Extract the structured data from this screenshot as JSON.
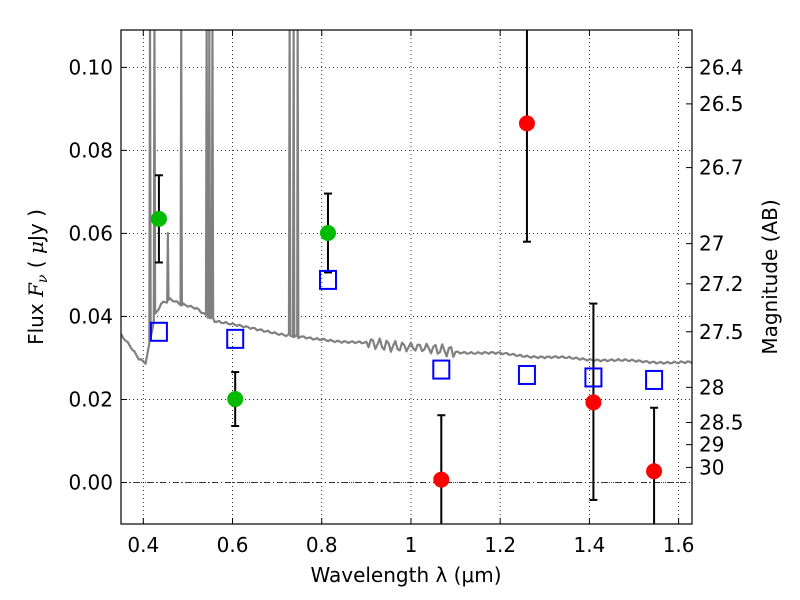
{
  "chart_data": {
    "type": "scatter",
    "xlabel": "Wavelength  λ (μm)",
    "ylabel_parts": [
      "Flux ",
      "F",
      "ν",
      "  ( ",
      "μ",
      "Jy )"
    ],
    "y2label": "Magnitude (AB)",
    "xlim": [
      0.35,
      1.63
    ],
    "ylim": [
      -0.01,
      0.109
    ],
    "grid": true,
    "x_ticks": [
      0.4,
      0.6,
      0.8,
      1.0,
      1.2,
      1.4,
      1.6
    ],
    "x_tick_labels": [
      "0.4",
      "0.6",
      "0.8",
      "1",
      "1.2",
      "1.4",
      "1.6"
    ],
    "y_ticks": [
      0.0,
      0.02,
      0.04,
      0.06,
      0.08,
      0.1
    ],
    "y_tick_labels": [
      "0.00",
      "0.02",
      "0.04",
      "0.06",
      "0.08",
      "0.10"
    ],
    "mag_ticks": [
      26.4,
      26.5,
      26.7,
      27,
      27.2,
      27.5,
      28,
      28.5,
      29,
      30
    ],
    "mag_tick_labels": [
      "26.4",
      "26.5",
      "26.7",
      "27",
      "27.2",
      "27.5",
      "28",
      "28.5",
      "29",
      "30"
    ],
    "zero_point_uJy": 23.9,
    "series": [
      {
        "marker": "circle",
        "color": "#00bb00",
        "points": [
          {
            "x": 0.435,
            "y": 0.0635,
            "yerr_low": 0.0105,
            "yerr_high": 0.0105
          },
          {
            "x": 0.606,
            "y": 0.0201,
            "yerr_low": 0.0065,
            "yerr_high": 0.0065
          },
          {
            "x": 0.814,
            "y": 0.0601,
            "yerr_low": 0.0095,
            "yerr_high": 0.0095
          }
        ]
      },
      {
        "marker": "circle",
        "color": "#ff0000",
        "points": [
          {
            "x": 1.068,
            "y": 0.0007,
            "yerr_low": 0.016,
            "yerr_high": 0.0155
          },
          {
            "x": 1.26,
            "y": 0.0865,
            "yerr_low": 0.0285,
            "yerr_high": 0.03
          },
          {
            "x": 1.409,
            "y": 0.0193,
            "yerr_low": 0.0235,
            "yerr_high": 0.0238
          },
          {
            "x": 1.545,
            "y": 0.0027,
            "yerr_low": 0.013,
            "yerr_high": 0.0153
          }
        ]
      },
      {
        "marker": "open-square",
        "color": "#0000ff",
        "points": [
          {
            "x": 0.435,
            "y": 0.0363
          },
          {
            "x": 0.606,
            "y": 0.0346
          },
          {
            "x": 0.814,
            "y": 0.0488
          },
          {
            "x": 1.068,
            "y": 0.0272
          },
          {
            "x": 1.26,
            "y": 0.0259
          },
          {
            "x": 1.409,
            "y": 0.0253
          },
          {
            "x": 1.545,
            "y": 0.0247
          }
        ]
      }
    ],
    "sed_model": {
      "color": "#808080",
      "continuum": [
        [
          0.35,
          0.0355
        ],
        [
          0.37,
          0.033
        ],
        [
          0.39,
          0.03
        ],
        [
          0.405,
          0.029
        ],
        [
          0.415,
          0.034
        ],
        [
          0.425,
          0.04
        ],
        [
          0.44,
          0.043
        ],
        [
          0.46,
          0.044
        ],
        [
          0.48,
          0.043
        ],
        [
          0.5,
          0.0425
        ],
        [
          0.52,
          0.042
        ],
        [
          0.54,
          0.0405
        ],
        [
          0.56,
          0.039
        ],
        [
          0.58,
          0.0385
        ],
        [
          0.6,
          0.038
        ],
        [
          0.62,
          0.0375
        ],
        [
          0.65,
          0.037
        ],
        [
          0.68,
          0.0365
        ],
        [
          0.7,
          0.036
        ],
        [
          0.72,
          0.0355
        ],
        [
          0.75,
          0.035
        ],
        [
          0.78,
          0.0345
        ],
        [
          0.8,
          0.0345
        ],
        [
          0.85,
          0.034
        ],
        [
          0.9,
          0.0335
        ],
        [
          0.95,
          0.033
        ],
        [
          1.0,
          0.0328
        ],
        [
          1.05,
          0.032
        ],
        [
          1.1,
          0.0315
        ],
        [
          1.2,
          0.031
        ],
        [
          1.3,
          0.0302
        ],
        [
          1.4,
          0.0297
        ],
        [
          1.5,
          0.0292
        ],
        [
          1.63,
          0.0288
        ]
      ],
      "emission_lines": [
        {
          "x": 0.415,
          "top": 0.11
        },
        {
          "x": 0.425,
          "top": 0.11
        },
        {
          "x": 0.455,
          "top": 0.06
        },
        {
          "x": 0.485,
          "top": 0.11
        },
        {
          "x": 0.542,
          "top": 0.11
        },
        {
          "x": 0.548,
          "top": 0.11
        },
        {
          "x": 0.555,
          "top": 0.11
        },
        {
          "x": 0.728,
          "top": 0.11
        },
        {
          "x": 0.737,
          "top": 0.11
        },
        {
          "x": 0.746,
          "top": 0.11
        }
      ]
    }
  }
}
